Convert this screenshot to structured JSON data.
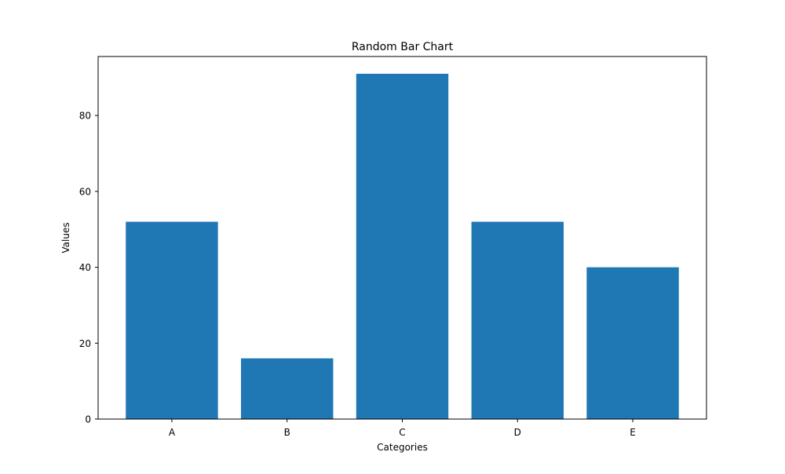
{
  "chart_data": {
    "type": "bar",
    "title": "Random Bar Chart",
    "xlabel": "Categories",
    "ylabel": "Values",
    "categories": [
      "A",
      "B",
      "C",
      "D",
      "E"
    ],
    "values": [
      52,
      16,
      91,
      52,
      40
    ],
    "ylim": [
      0,
      95.55
    ],
    "yticks": [
      0,
      20,
      40,
      60,
      80
    ],
    "grid": false,
    "colors": {
      "bar": "#1f77b4",
      "axis": "#000000",
      "background": "#ffffff"
    }
  }
}
